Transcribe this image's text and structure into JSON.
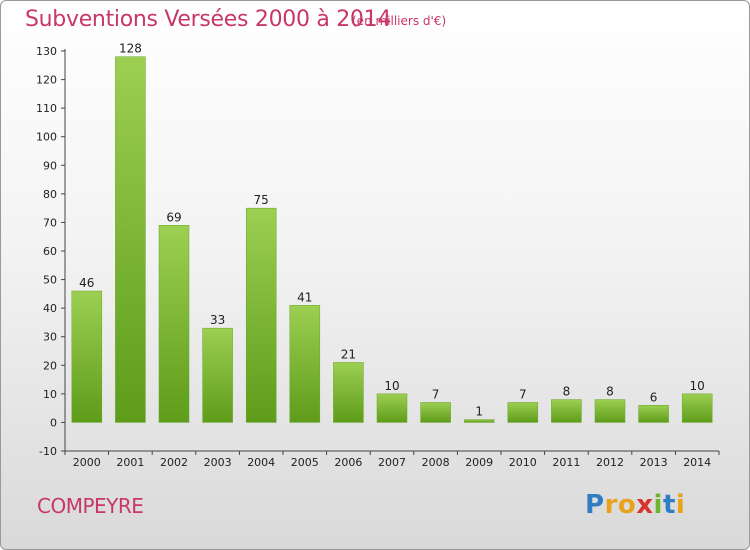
{
  "chart_data": {
    "type": "bar",
    "title": "Subventions Versées 2000 à 2014",
    "subtitle": "(en milliers d'€)",
    "categories": [
      "2000",
      "2001",
      "2002",
      "2003",
      "2004",
      "2005",
      "2006",
      "2007",
      "2008",
      "2009",
      "2010",
      "2011",
      "2012",
      "2013",
      "2014"
    ],
    "values": [
      46,
      128,
      69,
      33,
      75,
      41,
      21,
      10,
      7,
      1,
      7,
      8,
      8,
      6,
      10
    ],
    "ylim": [
      -10,
      130
    ],
    "yticks": [
      -10,
      0,
      10,
      20,
      30,
      40,
      50,
      60,
      70,
      80,
      90,
      100,
      110,
      120,
      130
    ],
    "xlabel": "",
    "ylabel": "",
    "grid": false,
    "bar_color_top": "#9ccf52",
    "bar_color_bottom": "#5e9c1a"
  },
  "footer": {
    "place_name": "COMPEYRE",
    "logo_letters": [
      "P",
      "r",
      "o",
      "x",
      "i",
      "t",
      "i"
    ],
    "logo_colors": [
      "#2f7ec4",
      "#e8a21c",
      "#e8a21c",
      "#d9342b",
      "#6fb52c",
      "#2f7ec4",
      "#e8a21c"
    ]
  },
  "colors": {
    "accent": "#c8366a"
  }
}
